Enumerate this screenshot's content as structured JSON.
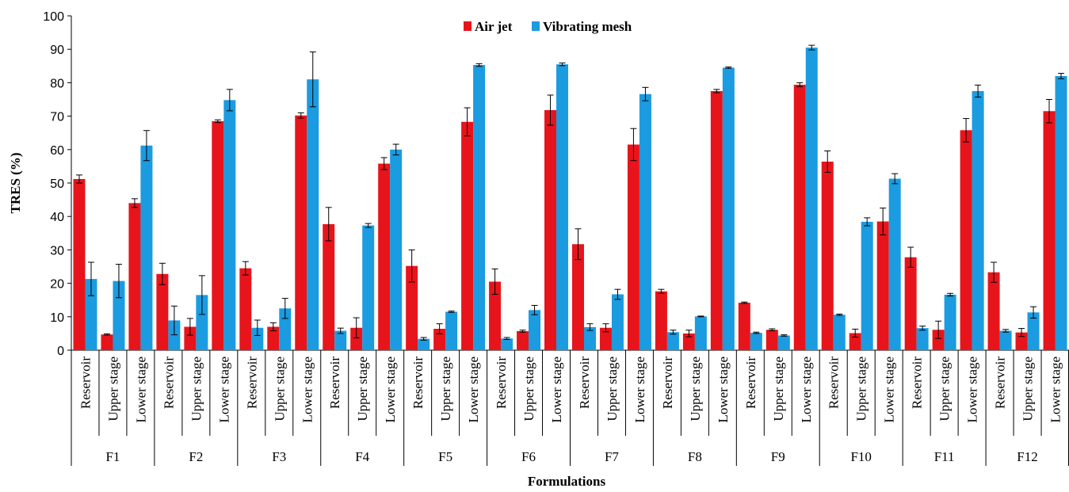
{
  "chart_data": {
    "type": "bar",
    "ylabel": "TRES (%)",
    "xlabel": "Formulations",
    "ylim": [
      0,
      100
    ],
    "yticks": [
      0,
      10,
      20,
      30,
      40,
      50,
      60,
      70,
      80,
      90,
      100
    ],
    "grid": false,
    "legend_position": "top-center",
    "groups": [
      "F1",
      "F2",
      "F3",
      "F4",
      "F5",
      "F6",
      "F7",
      "F8",
      "F9",
      "F10",
      "F11",
      "F12"
    ],
    "stages": [
      "Reservoir",
      "Upper stage",
      "Lower stage"
    ],
    "series": [
      {
        "name": "Air jet",
        "color": "#e8141b",
        "values": [
          [
            51.2,
            4.7,
            44.0
          ],
          [
            22.8,
            7.0,
            68.5
          ],
          [
            24.5,
            7.0,
            70.2
          ],
          [
            37.7,
            6.7,
            55.8
          ],
          [
            25.2,
            6.4,
            68.3
          ],
          [
            20.5,
            5.7,
            71.8
          ],
          [
            31.7,
            6.7,
            61.5
          ],
          [
            17.6,
            5.0,
            77.5
          ],
          [
            14.2,
            6.1,
            79.4
          ],
          [
            56.4,
            5.1,
            38.5
          ],
          [
            27.8,
            6.1,
            65.8
          ],
          [
            23.3,
            5.3,
            71.5
          ]
        ],
        "errors": [
          [
            1.2,
            0.2,
            1.3
          ],
          [
            3.2,
            2.5,
            0.4
          ],
          [
            2.0,
            1.2,
            0.8
          ],
          [
            5.0,
            3.0,
            1.8
          ],
          [
            4.8,
            1.5,
            4.2
          ],
          [
            3.8,
            0.3,
            4.5
          ],
          [
            4.6,
            1.2,
            4.8
          ],
          [
            0.6,
            1.0,
            0.5
          ],
          [
            0.2,
            0.3,
            0.6
          ],
          [
            3.2,
            1.2,
            4.0
          ],
          [
            3.0,
            2.6,
            3.5
          ],
          [
            3.0,
            1.2,
            3.5
          ]
        ]
      },
      {
        "name": "Vibrating mesh",
        "color": "#1b9be0",
        "values": [
          [
            21.3,
            20.7,
            61.2
          ],
          [
            8.9,
            16.5,
            74.8
          ],
          [
            6.7,
            12.5,
            81.0
          ],
          [
            5.8,
            37.3,
            60.0
          ],
          [
            3.4,
            11.5,
            85.3
          ],
          [
            3.5,
            12.0,
            85.5
          ],
          [
            6.9,
            16.7,
            76.6
          ],
          [
            5.4,
            10.1,
            84.5
          ],
          [
            5.2,
            4.4,
            90.5
          ],
          [
            10.6,
            38.4,
            51.3
          ],
          [
            6.6,
            16.6,
            77.5
          ],
          [
            5.8,
            11.3,
            82.0
          ]
        ],
        "errors": [
          [
            5.0,
            5.0,
            4.5
          ],
          [
            4.3,
            5.8,
            3.2
          ],
          [
            2.3,
            3.0,
            8.2
          ],
          [
            0.8,
            0.6,
            1.6
          ],
          [
            0.4,
            0.2,
            0.4
          ],
          [
            0.3,
            1.4,
            0.4
          ],
          [
            1.0,
            1.5,
            2.0
          ],
          [
            0.6,
            0.1,
            0.2
          ],
          [
            0.2,
            0.2,
            0.7
          ],
          [
            0.2,
            1.2,
            1.5
          ],
          [
            0.6,
            0.4,
            1.8
          ],
          [
            0.4,
            1.7,
            0.8
          ]
        ]
      }
    ]
  }
}
